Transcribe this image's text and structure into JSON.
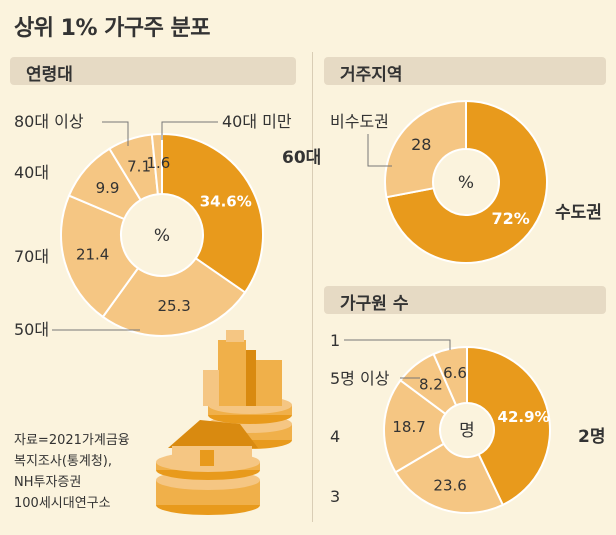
{
  "title": "상위 1% 가구주 분포",
  "source_lines": [
    "자료=2021가계금융",
    "복지조사(통계청),",
    "NH투자증권",
    "100세시대연구소"
  ],
  "colors": {
    "accent": "#e89a1c",
    "light": "#f5c683",
    "bg": "#fbf3dd",
    "bar": "#e6dac4"
  },
  "chart_data": [
    {
      "type": "pie",
      "title": "연령대",
      "center_label": "%",
      "categories": [
        "60대",
        "50대",
        "70대",
        "40대",
        "80대 이상",
        "40대 미만"
      ],
      "values": [
        34.6,
        25.3,
        21.4,
        9.9,
        7.1,
        1.6
      ],
      "value_labels": [
        "34.6%",
        "25.3",
        "21.4",
        "9.9",
        "7.1",
        "1.6"
      ],
      "highlight": "60대"
    },
    {
      "type": "pie",
      "title": "거주지역",
      "center_label": "%",
      "categories": [
        "수도권",
        "비수도권"
      ],
      "values": [
        72,
        28
      ],
      "value_labels": [
        "72%",
        "28"
      ],
      "highlight": "수도권"
    },
    {
      "type": "pie",
      "title": "가구원 수",
      "center_label": "명",
      "categories": [
        "2명",
        "3",
        "4",
        "5명 이상",
        "1"
      ],
      "values": [
        42.9,
        23.6,
        18.7,
        8.2,
        6.6
      ],
      "value_labels": [
        "42.9%",
        "23.6",
        "18.7",
        "8.2",
        "6.6"
      ],
      "highlight": "2명"
    }
  ]
}
